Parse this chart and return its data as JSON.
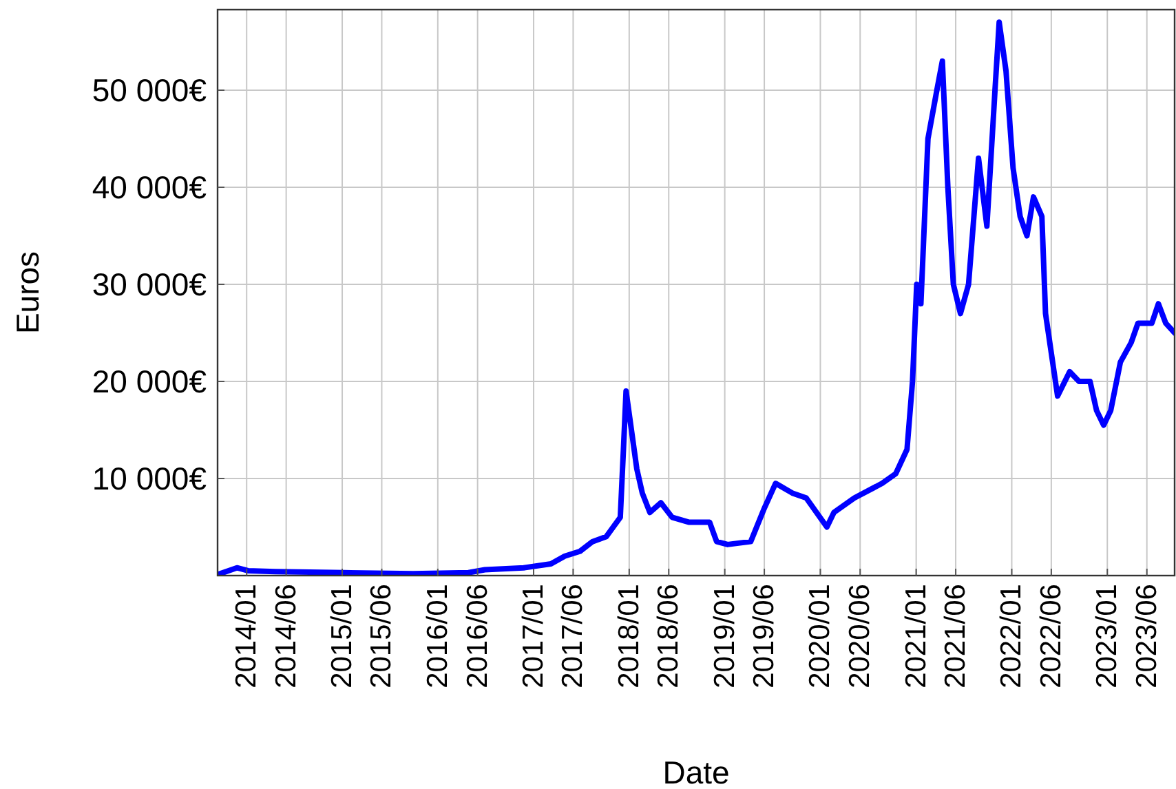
{
  "chart_data": {
    "type": "line",
    "xlabel": "Date",
    "ylabel": "Euros",
    "grid": true,
    "marker": "none",
    "line_style": "solid",
    "xlim": [
      "2013-09-12",
      "2023-09-15"
    ],
    "ylim": [
      0,
      58300
    ],
    "xticks": [
      {
        "value": "2014-01-01",
        "label": "2014/01"
      },
      {
        "value": "2014-06-01",
        "label": "2014/06"
      },
      {
        "value": "2015-01-01",
        "label": "2015/01"
      },
      {
        "value": "2015-06-01",
        "label": "2015/06"
      },
      {
        "value": "2016-01-01",
        "label": "2016/01"
      },
      {
        "value": "2016-06-01",
        "label": "2016/06"
      },
      {
        "value": "2017-01-01",
        "label": "2017/01"
      },
      {
        "value": "2017-06-01",
        "label": "2017/06"
      },
      {
        "value": "2018-01-01",
        "label": "2018/01"
      },
      {
        "value": "2018-06-01",
        "label": "2018/06"
      },
      {
        "value": "2019-01-01",
        "label": "2019/01"
      },
      {
        "value": "2019-06-01",
        "label": "2019/06"
      },
      {
        "value": "2020-01-01",
        "label": "2020/01"
      },
      {
        "value": "2020-06-01",
        "label": "2020/06"
      },
      {
        "value": "2021-01-01",
        "label": "2021/01"
      },
      {
        "value": "2021-06-01",
        "label": "2021/06"
      },
      {
        "value": "2022-01-01",
        "label": "2022/01"
      },
      {
        "value": "2022-06-01",
        "label": "2022/06"
      },
      {
        "value": "2023-01-01",
        "label": "2023/01"
      },
      {
        "value": "2023-06-01",
        "label": "2023/06"
      }
    ],
    "yticks": [
      {
        "value": 10000,
        "label": "10 000€"
      },
      {
        "value": 20000,
        "label": "20 000€"
      },
      {
        "value": 30000,
        "label": "30 000€"
      },
      {
        "value": 40000,
        "label": "40 000€"
      },
      {
        "value": 50000,
        "label": "50 000€"
      }
    ],
    "x": [
      "2013-09-12",
      "2013-11-25",
      "2014-01-06",
      "2014-04-20",
      "2015-01-09",
      "2015-09-29",
      "2016-04-27",
      "2016-06-29",
      "2016-11-24",
      "2017-03-08",
      "2017-04-30",
      "2017-06-27",
      "2017-08-14",
      "2017-10-05",
      "2017-11-28",
      "2017-12-10",
      "2017-12-20",
      "2018-01-30",
      "2018-02-20",
      "2018-03-21",
      "2018-05-02",
      "2018-06-14",
      "2018-08-16",
      "2018-11-04",
      "2018-12-01",
      "2019-01-12",
      "2019-04-10",
      "2019-06-02",
      "2019-07-14",
      "2019-09-16",
      "2019-11-08",
      "2020-01-26",
      "2020-02-22",
      "2020-05-10",
      "2020-08-24",
      "2020-10-15",
      "2020-11-27",
      "2020-12-18",
      "2021-01-03",
      "2021-01-19",
      "2021-02-15",
      "2021-03-21",
      "2021-04-11",
      "2021-05-02",
      "2021-05-23",
      "2021-06-19",
      "2021-07-20",
      "2021-08-27",
      "2021-09-28",
      "2021-10-29",
      "2021-11-14",
      "2021-12-10",
      "2022-01-06",
      "2022-02-02",
      "2022-02-28",
      "2022-03-25",
      "2022-04-26",
      "2022-05-10",
      "2022-06-25",
      "2022-08-10",
      "2022-09-15",
      "2022-10-27",
      "2022-11-21",
      "2022-12-18",
      "2023-01-14",
      "2023-02-20",
      "2023-04-02",
      "2023-04-28",
      "2023-06-20",
      "2023-07-15",
      "2023-08-12",
      "2023-09-15"
    ],
    "series": [
      {
        "color": "#0000ff",
        "values": [
          100,
          800,
          500,
          400,
          300,
          200,
          300,
          600,
          800,
          1200,
          2000,
          2500,
          3500,
          4000,
          6000,
          13000,
          19000,
          11000,
          8500,
          6500,
          7500,
          6000,
          5500,
          5500,
          3500,
          3200,
          3500,
          7000,
          9500,
          8500,
          8000,
          5000,
          6500,
          8000,
          9500,
          10500,
          13000,
          20000,
          30000,
          28000,
          45000,
          50000,
          53000,
          40000,
          30000,
          27000,
          30000,
          43000,
          36000,
          50000,
          57000,
          52000,
          42000,
          37000,
          35000,
          39000,
          37000,
          27000,
          18500,
          21000,
          20000,
          20000,
          17000,
          15500,
          17000,
          22000,
          24000,
          26000,
          26000,
          28000,
          26000,
          25000
        ]
      }
    ]
  }
}
